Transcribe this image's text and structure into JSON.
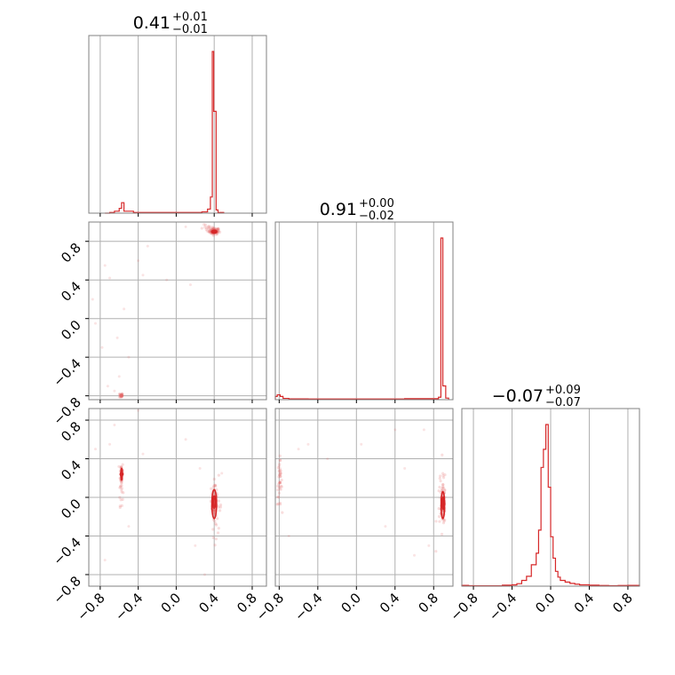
{
  "chart_data": {
    "type": "corner",
    "colors": {
      "series": "#d62728",
      "grid": "#b0b0b0",
      "frame": "#808080",
      "point": "#e46b6b"
    },
    "grid": true,
    "axis_range": {
      "p0": [
        -0.92,
        0.95
      ],
      "p1": [
        -0.84,
        1.0
      ],
      "p2": [
        -0.92,
        0.92
      ]
    },
    "ticks": {
      "values": [
        -0.8,
        -0.4,
        0.0,
        0.4,
        0.8
      ],
      "labels": [
        "−0.8",
        "−0.4",
        "0.0",
        "0.4",
        "0.8"
      ]
    },
    "titles": [
      {
        "median": "0.41",
        "plus": "+0.01",
        "minus": "−0.01"
      },
      {
        "median": "0.91",
        "plus": "+0.00",
        "minus": "−0.02"
      },
      {
        "median": "−0.07",
        "plus": "+0.09",
        "minus": "−0.07"
      }
    ],
    "histograms": [
      {
        "param": "p0",
        "bin_edges": [
          -0.75,
          -0.7,
          -0.65,
          -0.6,
          -0.575,
          -0.55,
          -0.45,
          0.27,
          0.33,
          0.36,
          0.38,
          0.395,
          0.42,
          0.44,
          0.5
        ],
        "counts": [
          0.0,
          0.004,
          0.012,
          0.03,
          0.065,
          0.012,
          0.004,
          0.008,
          0.025,
          0.1,
          1.0,
          0.63,
          0.02,
          0.004
        ]
      },
      {
        "param": "p1",
        "bin_edges": [
          -0.84,
          -0.82,
          -0.79,
          -0.76,
          -0.7,
          -0.5,
          0.0,
          0.5,
          0.85,
          0.875,
          0.895,
          0.925,
          0.955
        ],
        "counts": [
          0.02,
          0.03,
          0.02,
          0.008,
          0.005,
          0.004,
          0.004,
          0.006,
          0.015,
          1.0,
          0.085,
          0.01
        ]
      },
      {
        "param": "p2",
        "bin_edges": [
          -0.92,
          -0.85,
          -0.8,
          -0.5,
          -0.4,
          -0.35,
          -0.3,
          -0.25,
          -0.2,
          -0.15,
          -0.125,
          -0.1,
          -0.075,
          -0.05,
          -0.025,
          0.0,
          0.025,
          0.05,
          0.075,
          0.1,
          0.15,
          0.2,
          0.25,
          0.3,
          0.4,
          0.5,
          0.6,
          0.7,
          0.8,
          0.92
        ],
        "counts": [
          0.005,
          0.003,
          0.002,
          0.006,
          0.008,
          0.015,
          0.035,
          0.06,
          0.13,
          0.2,
          0.34,
          0.72,
          0.83,
          0.98,
          0.6,
          0.3,
          0.17,
          0.09,
          0.055,
          0.035,
          0.025,
          0.017,
          0.012,
          0.008,
          0.006,
          0.004,
          0.003,
          0.004,
          0.005
        ]
      }
    ],
    "scatter_panels": [
      {
        "x_param": "p0",
        "y_param": "p1",
        "clusters": [
          {
            "x": 0.4,
            "y": 0.905,
            "sx": 0.028,
            "sy": 0.017,
            "n": 90
          },
          {
            "x": 0.34,
            "y": 0.93,
            "sx": 0.04,
            "sy": 0.02,
            "n": 12
          },
          {
            "x": -0.58,
            "y": -0.795,
            "sx": 0.008,
            "sy": 0.012,
            "n": 30
          }
        ],
        "outliers": [
          [
            -0.85,
            -0.05
          ],
          [
            -0.75,
            0.55
          ],
          [
            -0.7,
            0.42
          ],
          [
            -0.55,
            0.1
          ],
          [
            -0.4,
            0.6
          ],
          [
            -0.35,
            0.45
          ],
          [
            -0.1,
            0.4
          ],
          [
            0.15,
            0.35
          ],
          [
            -0.78,
            -0.3
          ],
          [
            -0.6,
            -0.6
          ],
          [
            -0.72,
            -0.7
          ],
          [
            -0.65,
            -0.75
          ],
          [
            -0.3,
            0.75
          ],
          [
            0.1,
            0.95
          ],
          [
            -0.88,
            0.2
          ],
          [
            -0.5,
            -0.4
          ],
          [
            -0.62,
            -0.2
          ]
        ],
        "contours": [
          {
            "x": 0.4,
            "y": 0.9,
            "rx": 0.025,
            "ry": 0.012,
            "weight": 2.2
          }
        ]
      },
      {
        "x_param": "p0",
        "y_param": "p2",
        "clusters": [
          {
            "x": -0.575,
            "y": 0.25,
            "sx": 0.008,
            "sy": 0.06,
            "n": 45
          },
          {
            "x": -0.58,
            "y": 0.08,
            "sx": 0.01,
            "sy": 0.08,
            "n": 15
          },
          {
            "x": 0.4,
            "y": -0.06,
            "sx": 0.012,
            "sy": 0.08,
            "n": 80
          },
          {
            "x": 0.42,
            "y": -0.1,
            "sx": 0.03,
            "sy": 0.15,
            "n": 30
          }
        ],
        "outliers": [
          [
            -0.7,
            0.55
          ],
          [
            -0.65,
            0.75
          ],
          [
            -0.85,
            0.5
          ],
          [
            -0.4,
            0.9
          ],
          [
            -0.5,
            -0.3
          ],
          [
            -0.75,
            -0.65
          ],
          [
            0.2,
            -0.5
          ],
          [
            0.3,
            -0.8
          ],
          [
            0.48,
            0.25
          ],
          [
            0.25,
            0.3
          ],
          [
            -0.35,
            0.45
          ],
          [
            0.1,
            0.6
          ]
        ],
        "contours": [
          {
            "x": -0.575,
            "y": 0.24,
            "rx": 0.007,
            "ry": 0.06,
            "weight": 1.8
          },
          {
            "x": 0.4,
            "y": -0.05,
            "rx": 0.012,
            "ry": 0.06,
            "weight": 2.2
          },
          {
            "x": 0.4,
            "y": -0.07,
            "rx": 0.025,
            "ry": 0.15,
            "weight": 1.6
          }
        ]
      },
      {
        "x_param": "p1",
        "y_param": "p2",
        "clusters": [
          {
            "x": -0.795,
            "y": 0.15,
            "sx": 0.012,
            "sy": 0.12,
            "n": 40
          },
          {
            "x": 0.9,
            "y": -0.08,
            "sx": 0.01,
            "sy": 0.1,
            "n": 80
          },
          {
            "x": 0.88,
            "y": -0.05,
            "sx": 0.025,
            "sy": 0.2,
            "n": 25
          }
        ],
        "outliers": [
          [
            -0.6,
            0.5
          ],
          [
            -0.3,
            0.4
          ],
          [
            0.05,
            0.55
          ],
          [
            0.4,
            0.7
          ],
          [
            0.7,
            0.7
          ],
          [
            0.75,
            -0.5
          ],
          [
            0.6,
            -0.6
          ],
          [
            -0.7,
            -0.4
          ],
          [
            0.5,
            0.3
          ],
          [
            -0.5,
            0.55
          ],
          [
            0.3,
            -0.3
          ],
          [
            0.1,
            0.95
          ]
        ],
        "contours": [
          {
            "x": 0.9,
            "y": -0.06,
            "rx": 0.009,
            "ry": 0.06,
            "weight": 2.2
          },
          {
            "x": 0.895,
            "y": -0.08,
            "rx": 0.018,
            "ry": 0.14,
            "weight": 1.6
          }
        ]
      }
    ]
  }
}
